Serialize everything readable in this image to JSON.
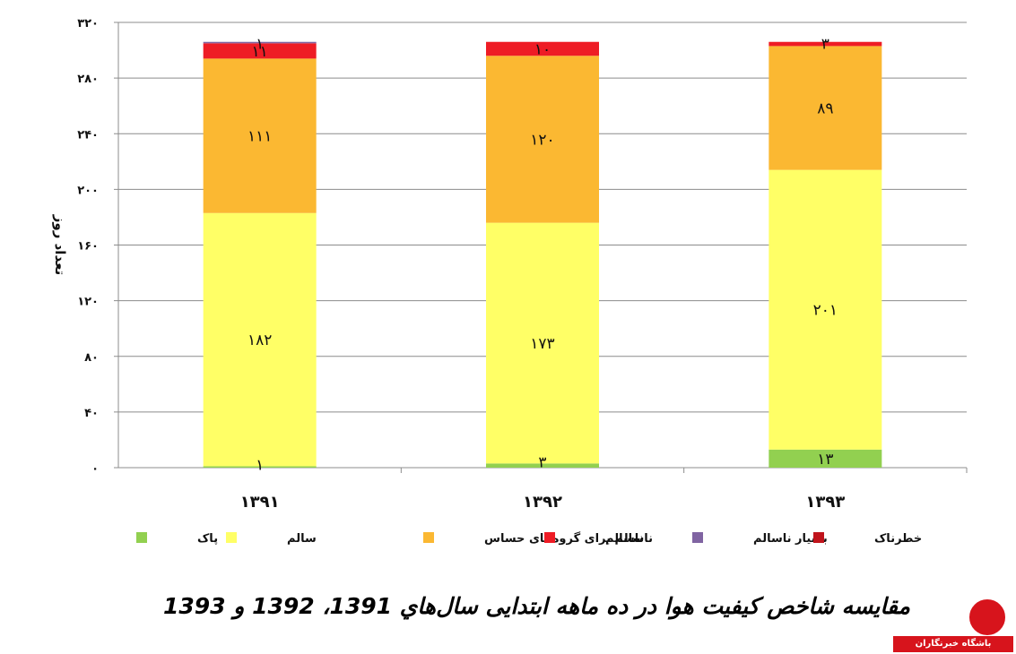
{
  "chart_data": {
    "type": "bar",
    "stacked": true,
    "categories": [
      "۱۳۹۱",
      "۱۳۹۲",
      "۱۳۹۳"
    ],
    "series": [
      {
        "name": "پاک",
        "color": "#92d050",
        "values": [
          1,
          3,
          13
        ],
        "labels": [
          "۱",
          "۳",
          "۱۳"
        ]
      },
      {
        "name": "سالم",
        "color": "#ffff66",
        "values": [
          182,
          173,
          201
        ],
        "labels": [
          "۱۸۲",
          "۱۷۳",
          "۲۰۱"
        ]
      },
      {
        "name": "ناسالم برای گروه‌های حساس",
        "color": "#fbb832",
        "values": [
          111,
          120,
          89
        ],
        "labels": [
          "۱۱۱",
          "۱۲۰",
          "۸۹"
        ]
      },
      {
        "name": "ناسالم",
        "color": "#ee1c25",
        "values": [
          11,
          10,
          3
        ],
        "labels": [
          "۱۱",
          "۱۰",
          "۳"
        ]
      },
      {
        "name": "بسیار ناسالم",
        "color": "#8064a2",
        "values": [
          1,
          0,
          0
        ],
        "labels": [
          "۱",
          "",
          ""
        ]
      },
      {
        "name": "خطرناک",
        "color": "#c0141c",
        "values": [
          0,
          0,
          0
        ],
        "labels": [
          "",
          "",
          ""
        ]
      }
    ],
    "ylabel": "تعداد روز",
    "ylim": [
      0,
      320
    ],
    "yticks": [
      0,
      40,
      80,
      120,
      160,
      200,
      240,
      280,
      320
    ],
    "ytick_labels": [
      "۰",
      "۴۰",
      "۸۰",
      "۱۲۰",
      "۱۶۰",
      "۲۰۰",
      "۲۴۰",
      "۲۸۰",
      "۳۲۰"
    ],
    "grid": true,
    "legend": "bottom"
  },
  "caption": "مقایسه  شاخص کیفیت  هوا در ده ماهه ابتدایی سال‌هاي 1391، 1392 و 1393",
  "logo": {
    "banner_text": "باشگاه خبرنگاران"
  }
}
